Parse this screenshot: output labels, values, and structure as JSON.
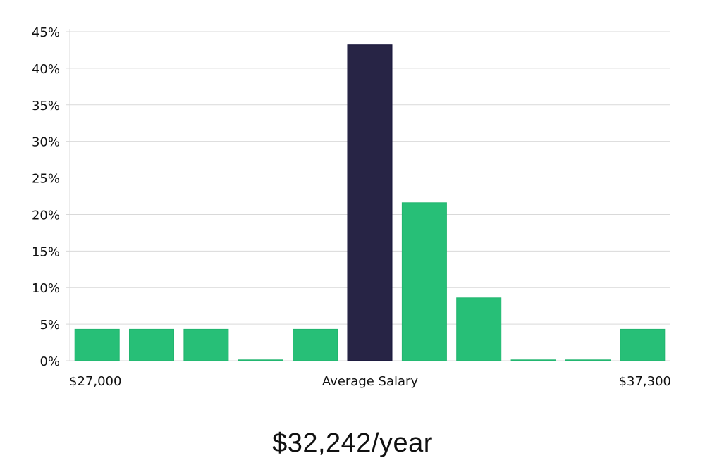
{
  "chart_data": {
    "type": "bar",
    "title": "",
    "xlabel": "Average Salary",
    "ylabel": "",
    "ylim": [
      0,
      45
    ],
    "y_ticks": [
      "0%",
      "5%",
      "10%",
      "15%",
      "20%",
      "25%",
      "30%",
      "35%",
      "40%",
      "45%"
    ],
    "y_tick_values": [
      0,
      5,
      10,
      15,
      20,
      25,
      30,
      35,
      40,
      45
    ],
    "x_range_labels": {
      "left": "$27,000",
      "center": "Average Salary",
      "right": "$37,300"
    },
    "values": [
      4.3,
      4.3,
      4.3,
      0,
      4.3,
      43.2,
      21.6,
      8.6,
      0,
      0,
      4.3
    ],
    "highlight_index": 5,
    "grid": true
  },
  "summary": {
    "average_salary": "$32,242/year"
  },
  "colors": {
    "bar": "#27bf77",
    "bar_highlight": "#272445",
    "grid": "#d9d9d9",
    "text": "#111111"
  }
}
